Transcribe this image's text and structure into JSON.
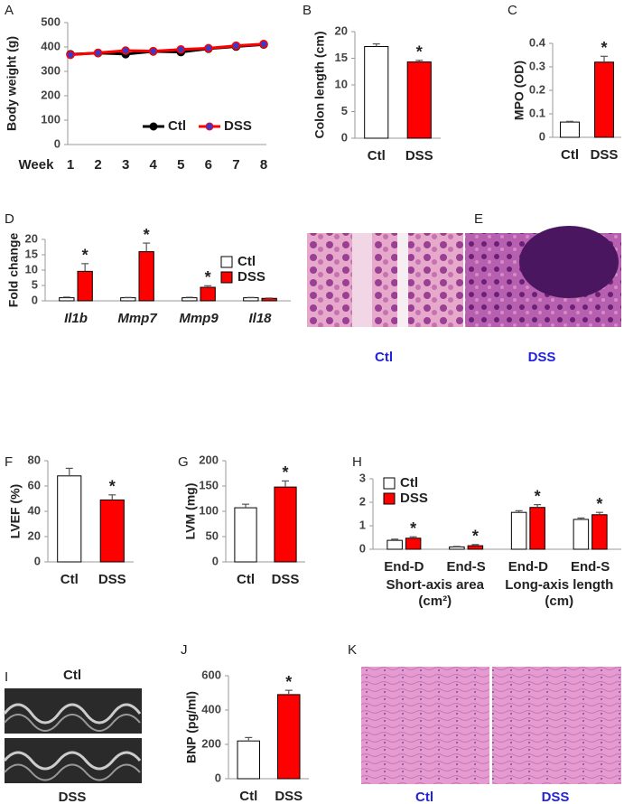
{
  "chart_data": [
    {
      "panel": "A",
      "type": "line",
      "ylabel": "Body weight (g)",
      "xlabel": "Week",
      "categories": [
        "1",
        "2",
        "3",
        "4",
        "5",
        "6",
        "7",
        "8"
      ],
      "series": [
        {
          "name": "Ctl",
          "color": "#000000",
          "marker_color": "#000000",
          "values": [
            370,
            375,
            371,
            382,
            379,
            393,
            402,
            410
          ]
        },
        {
          "name": "DSS",
          "color": "#ff0000",
          "marker_color": "#3a3ac8",
          "values": [
            368,
            376,
            385,
            383,
            390,
            395,
            405,
            412
          ]
        }
      ],
      "ylim": [
        0,
        500
      ],
      "yticks": [
        0,
        100,
        200,
        300,
        400,
        500
      ]
    },
    {
      "panel": "B",
      "type": "bar",
      "ylabel": "Colon length (cm)",
      "categories": [
        "Ctl",
        "DSS"
      ],
      "values": [
        17.2,
        14.3
      ],
      "errors": [
        0.5,
        0.3
      ],
      "colors": [
        "#ffffff",
        "#ff0000"
      ],
      "markers": [
        null,
        "*"
      ],
      "ylim": [
        0,
        20
      ],
      "yticks": [
        0,
        5,
        10,
        15,
        20
      ]
    },
    {
      "panel": "C",
      "type": "bar",
      "ylabel": "MPO (OD)",
      "categories": [
        "Ctl",
        "DSS"
      ],
      "values": [
        0.065,
        0.32
      ],
      "errors": [
        0.003,
        0.025
      ],
      "colors": [
        "#ffffff",
        "#ff0000"
      ],
      "markers": [
        null,
        "*"
      ],
      "ylim": [
        0,
        0.4
      ],
      "yticks": [
        0,
        0.1,
        0.2,
        0.3,
        0.4
      ]
    },
    {
      "panel": "D",
      "type": "bar",
      "ylabel": "Fold change",
      "categories": [
        "Il1b",
        "Mmp7",
        "Mmp9",
        "Il18"
      ],
      "series": [
        {
          "name": "Ctl",
          "color": "#ffffff",
          "values": [
            1,
            1,
            1,
            1
          ],
          "errors": [
            0.2,
            0.1,
            0.15,
            0.1
          ],
          "markers": [
            null,
            null,
            null,
            null
          ]
        },
        {
          "name": "DSS",
          "color": "#ff0000",
          "values": [
            9.6,
            16,
            4.4,
            0.8
          ],
          "errors": [
            2.5,
            2.8,
            0.5,
            0.1
          ],
          "markers": [
            "*",
            "*",
            "*",
            null
          ]
        }
      ],
      "ylim": [
        0,
        20
      ],
      "yticks": [
        0,
        5,
        10,
        15,
        20
      ]
    },
    {
      "panel": "F",
      "type": "bar",
      "ylabel": "LVEF (%)",
      "categories": [
        "Ctl",
        "DSS"
      ],
      "values": [
        68,
        49
      ],
      "errors": [
        6,
        4
      ],
      "colors": [
        "#ffffff",
        "#ff0000"
      ],
      "markers": [
        null,
        "*"
      ],
      "ylim": [
        0,
        80
      ],
      "yticks": [
        0,
        20,
        40,
        60,
        80
      ]
    },
    {
      "panel": "G",
      "type": "bar",
      "ylabel": "LVM (mg)",
      "categories": [
        "Ctl",
        "DSS"
      ],
      "values": [
        107,
        148
      ],
      "errors": [
        7,
        12
      ],
      "colors": [
        "#ffffff",
        "#ff0000"
      ],
      "markers": [
        null,
        "*"
      ],
      "ylim": [
        0,
        200
      ],
      "yticks": [
        0,
        50,
        100,
        150,
        200
      ]
    },
    {
      "panel": "H",
      "type": "bar",
      "categories": [
        "End-D",
        "End-S",
        "End-D",
        "End-S"
      ],
      "groups": [
        [
          "Short-axis area",
          "(cm²)"
        ],
        [
          "Long-axis length",
          "(cm)"
        ]
      ],
      "series": [
        {
          "name": "Ctl",
          "color": "#ffffff",
          "values": [
            0.38,
            0.1,
            1.57,
            1.27
          ],
          "errors": [
            0.05,
            0.02,
            0.07,
            0.06
          ],
          "markers": [
            null,
            null,
            null,
            null
          ]
        },
        {
          "name": "DSS",
          "color": "#ff0000",
          "values": [
            0.47,
            0.15,
            1.78,
            1.47
          ],
          "errors": [
            0.06,
            0.05,
            0.12,
            0.1
          ],
          "markers": [
            "*",
            "*",
            "*",
            "*"
          ]
        }
      ],
      "ylim": [
        0,
        3
      ],
      "yticks": [
        0,
        1,
        2,
        3
      ]
    },
    {
      "panel": "J",
      "type": "bar",
      "ylabel": "BNP (pg/ml)",
      "categories": [
        "Ctl",
        "DSS"
      ],
      "values": [
        220,
        490
      ],
      "errors": [
        20,
        25
      ],
      "colors": [
        "#ffffff",
        "#ff0000"
      ],
      "markers": [
        null,
        "*"
      ],
      "ylim": [
        0,
        600
      ],
      "yticks": [
        0,
        200,
        400,
        600
      ]
    }
  ],
  "images": [
    {
      "panel": "E",
      "labels": [
        "Ctl",
        "DSS"
      ]
    },
    {
      "panel": "I",
      "labels": [
        "Ctl",
        "DSS"
      ]
    },
    {
      "panel": "K",
      "labels": [
        "Ctl",
        "DSS"
      ]
    }
  ]
}
